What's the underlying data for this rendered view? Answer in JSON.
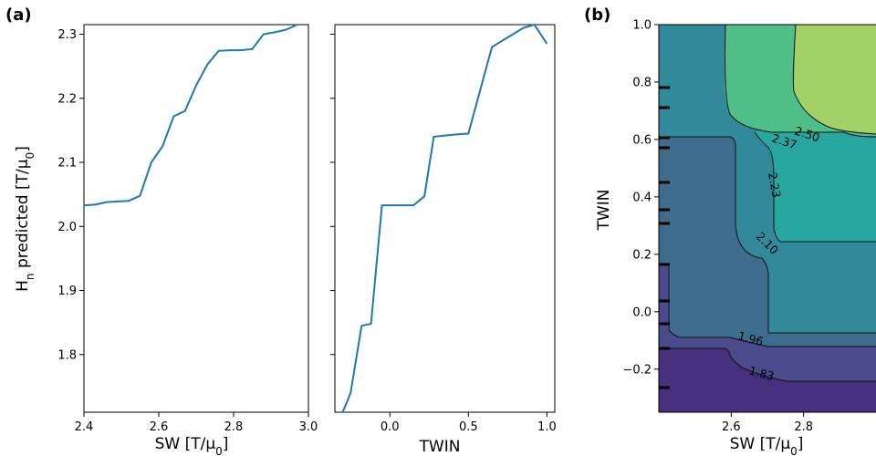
{
  "panel_labels": {
    "a": "(a)",
    "b": "(b)"
  },
  "colors": {
    "line": "#1f77b4",
    "levels": [
      "#46307e",
      "#4a4a8d",
      "#3e6c8c",
      "#31899a",
      "#27a7a0",
      "#4fbe88",
      "#a3d168",
      "#dde541"
    ]
  },
  "chart_data": [
    {
      "type": "line",
      "xlabel": "SW [T/μ0]",
      "ylabel": "Hn predicted [T/μ0]",
      "xlim": [
        2.4,
        3.0
      ],
      "ylim": [
        1.71,
        2.315
      ],
      "xticks": [
        "2.4",
        "2.6",
        "2.8",
        "3.0"
      ],
      "yticks": [
        "1.8",
        "1.9",
        "2.0",
        "2.1",
        "2.2",
        "2.3"
      ],
      "series": [
        {
          "x": [
            2.4,
            2.43,
            2.46,
            2.49,
            2.52,
            2.55,
            2.58,
            2.61,
            2.64,
            2.67,
            2.7,
            2.73,
            2.76,
            2.79,
            2.82,
            2.85,
            2.88,
            2.91,
            2.94,
            2.97
          ],
          "y": [
            2.033,
            2.034,
            2.038,
            2.039,
            2.04,
            2.048,
            2.1,
            2.125,
            2.172,
            2.18,
            2.22,
            2.253,
            2.274,
            2.275,
            2.275,
            2.277,
            2.3,
            2.303,
            2.307,
            2.315
          ]
        }
      ]
    },
    {
      "type": "line",
      "xlabel": "TWIN",
      "xlim": [
        -0.35,
        1.05
      ],
      "ylim": [
        1.71,
        2.315
      ],
      "xticks": [
        "0.0",
        "0.5",
        "1.0"
      ],
      "series": [
        {
          "x": [
            -0.3,
            -0.25,
            -0.18,
            -0.12,
            -0.05,
            0.05,
            0.15,
            0.22,
            0.28,
            0.4,
            0.5,
            0.55,
            0.65,
            0.75,
            0.85,
            0.92,
            1.0
          ],
          "y": [
            1.71,
            1.74,
            1.845,
            1.848,
            2.033,
            2.033,
            2.033,
            2.047,
            2.14,
            2.143,
            2.145,
            2.19,
            2.28,
            2.295,
            2.31,
            2.315,
            2.285
          ]
        }
      ]
    },
    {
      "type": "heatmap",
      "xlabel": "SW [T/μ0]",
      "ylabel": "TWIN",
      "xlim": [
        2.4,
        3.0
      ],
      "ylim": [
        -0.35,
        1.0
      ],
      "xticks": [
        "2.6",
        "2.8"
      ],
      "yticks": [
        "−0.2",
        "0.0",
        "0.2",
        "0.4",
        "0.6",
        "0.8",
        "1.0"
      ],
      "contour_levels": [
        "1.83",
        "1.96",
        "2.10",
        "2.23",
        "2.37",
        "2.50"
      ]
    }
  ]
}
